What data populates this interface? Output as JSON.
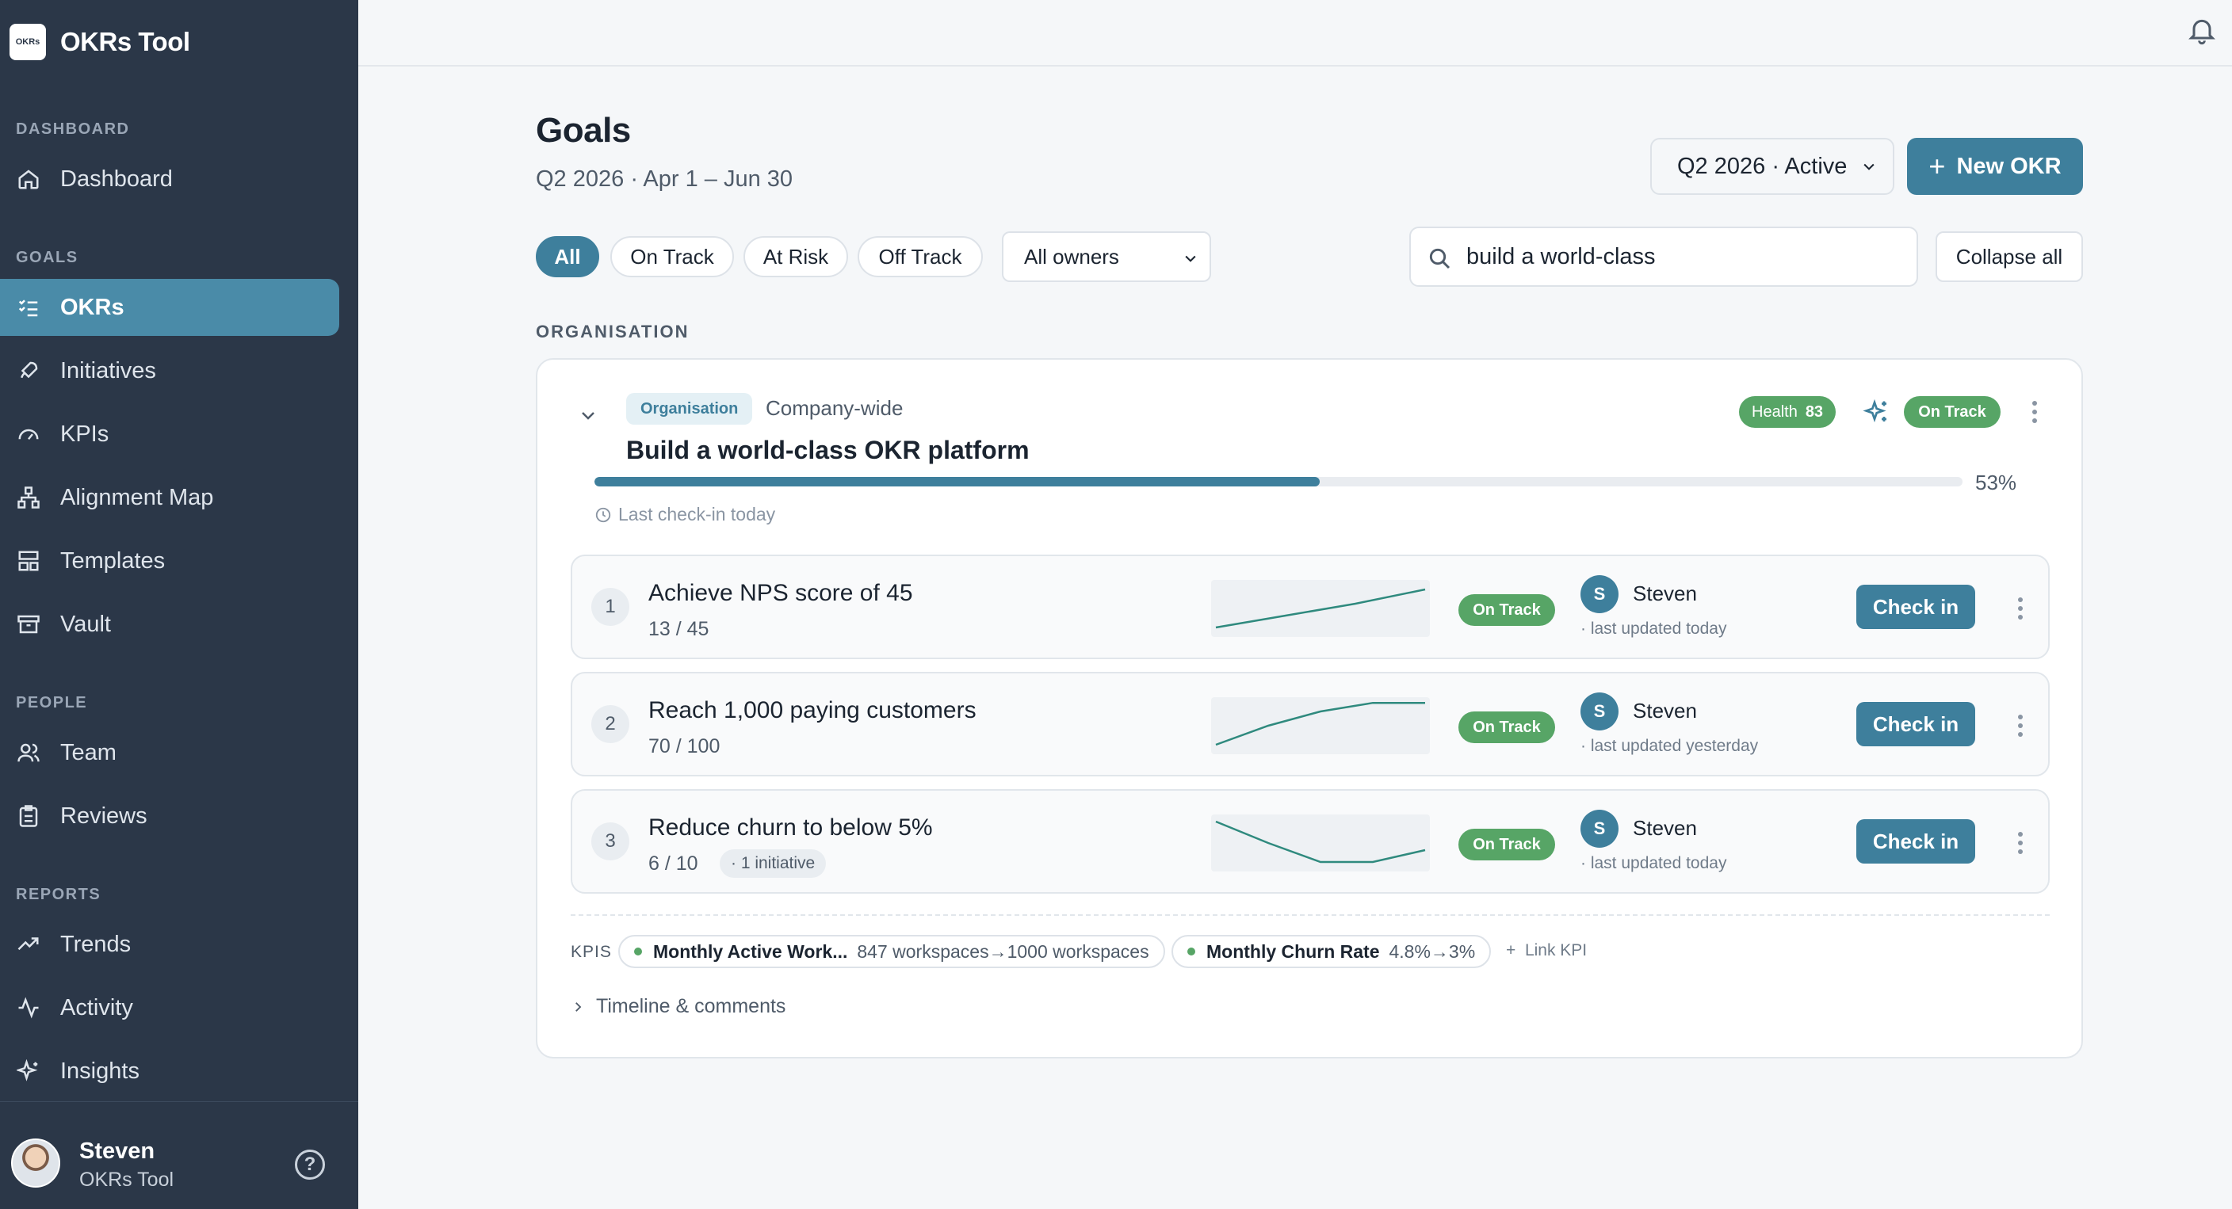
{
  "brand": {
    "logo_text": "OKRs",
    "name": "OKRs Tool"
  },
  "sidebar": {
    "sections": {
      "dashboard": "DASHBOARD",
      "goals": "GOALS",
      "people": "PEOPLE",
      "reports": "REPORTS"
    },
    "items": [
      {
        "label": "Dashboard",
        "icon": "home-icon"
      },
      {
        "label": "OKRs",
        "icon": "checklist-icon",
        "active": true
      },
      {
        "label": "Initiatives",
        "icon": "rocket-icon"
      },
      {
        "label": "KPIs",
        "icon": "gauge-icon"
      },
      {
        "label": "Alignment Map",
        "icon": "hierarchy-icon"
      },
      {
        "label": "Templates",
        "icon": "layout-icon"
      },
      {
        "label": "Vault",
        "icon": "archive-icon"
      },
      {
        "label": "Team",
        "icon": "users-icon"
      },
      {
        "label": "Reviews",
        "icon": "clipboard-icon"
      },
      {
        "label": "Trends",
        "icon": "trend-icon"
      },
      {
        "label": "Activity",
        "icon": "activity-icon"
      },
      {
        "label": "Insights",
        "icon": "sparkles-icon"
      }
    ],
    "user": {
      "name": "Steven",
      "org": "OKRs Tool"
    }
  },
  "page": {
    "title": "Goals",
    "subtitle": "Q2 2026 · Apr 1 – Jun 30",
    "quarter_select": "Q2 2026 · Active",
    "new_okr_label": "New OKR"
  },
  "filters": {
    "chips": [
      "All",
      "On Track",
      "At Risk",
      "Off Track"
    ],
    "owners": "All owners",
    "search_value": "build a world-class",
    "collapse_label": "Collapse all"
  },
  "section_label": "ORGANISATION",
  "objective": {
    "badge": "Organisation",
    "scope": "Company-wide",
    "health_label": "Health",
    "health_value": "83",
    "status": "On Track",
    "title": "Build a world-class OKR platform",
    "progress": 0.53,
    "progress_label": "53%",
    "last_checkin": "Last check-in today"
  },
  "key_results": [
    {
      "num": "1",
      "title": "Achieve NPS score of 45",
      "value": "13 / 45",
      "status": "On Track",
      "owner_initial": "S",
      "owner": "Steven",
      "updated": "· last updated today",
      "checkin": "Check in",
      "trend": [
        0.1,
        0.35,
        0.6,
        0.9
      ]
    },
    {
      "num": "2",
      "title": "Reach 1,000 paying customers",
      "value": "70 / 100",
      "status": "On Track",
      "owner_initial": "S",
      "owner": "Steven",
      "updated": "· last updated yesterday",
      "checkin": "Check in",
      "trend": [
        0.1,
        0.5,
        0.8,
        0.98,
        0.98
      ]
    },
    {
      "num": "3",
      "title": "Reduce churn to below 5%",
      "value": "6 / 10",
      "initiative": "· 1 initiative",
      "status": "On Track",
      "owner_initial": "S",
      "owner": "Steven",
      "updated": "· last updated today",
      "checkin": "Check in",
      "trend": [
        0.95,
        0.5,
        0.1,
        0.1,
        0.35
      ]
    }
  ],
  "kpis": {
    "label": "KPIS",
    "items": [
      {
        "name": "Monthly Active Work...",
        "value": "847 workspaces→1000 workspaces"
      },
      {
        "name": "Monthly Churn Rate",
        "value": "4.8%→3%"
      }
    ],
    "link_label": "Link KPI"
  },
  "timeline_label": "Timeline & comments",
  "colors": {
    "sidebar": "#2b3748",
    "accent": "#3e7f9c",
    "on_track": "#57a566"
  }
}
